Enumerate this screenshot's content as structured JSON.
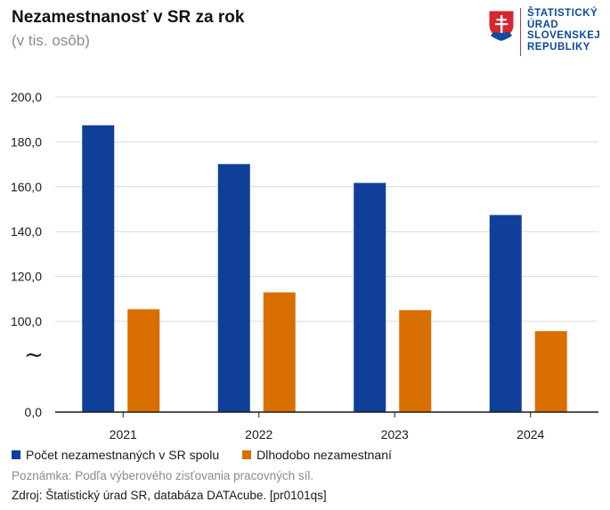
{
  "header": {
    "title": "Nezamestnanosť v SR za rok",
    "subtitle": "(v tis. osôb)"
  },
  "logo": {
    "lines": [
      "ŠTATISTICKÝ",
      "ÚRAD",
      "SLOVENSKEJ",
      "REPUBLIKY"
    ],
    "icon": "slovak-coat-of-arms-icon"
  },
  "chart_data": {
    "type": "bar",
    "title": "Nezamestnanosť v SR za rok",
    "subtitle": "(v tis. osôb)",
    "categories": [
      "2021",
      "2022",
      "2023",
      "2024"
    ],
    "series": [
      {
        "name": "Počet nezamestnaných v SR spolu",
        "color": "#0f3f99",
        "values": [
          187.4,
          170.1,
          161.7,
          147.4
        ]
      },
      {
        "name": "Dlhodobo nezamestnaní",
        "color": "#d96f00",
        "values": [
          105.4,
          112.9,
          105.0,
          95.6
        ]
      }
    ],
    "y_ticks": [
      "200,0",
      "180,0",
      "160,0",
      "140,0",
      "120,0",
      "100,0",
      "0,0"
    ],
    "y_tick_values": [
      200,
      180,
      160,
      140,
      120,
      100,
      0
    ],
    "axis_break_symbol": "~",
    "ylim": [
      0,
      200
    ],
    "grid": true,
    "legend": "bottom-left"
  },
  "footer": {
    "note": "Poznámka: Podľa výberového zisťovania pracovných síl.",
    "source": "Zdroj: Štatistický úrad SR, databáza DATAcube. [pr0101qs]"
  }
}
